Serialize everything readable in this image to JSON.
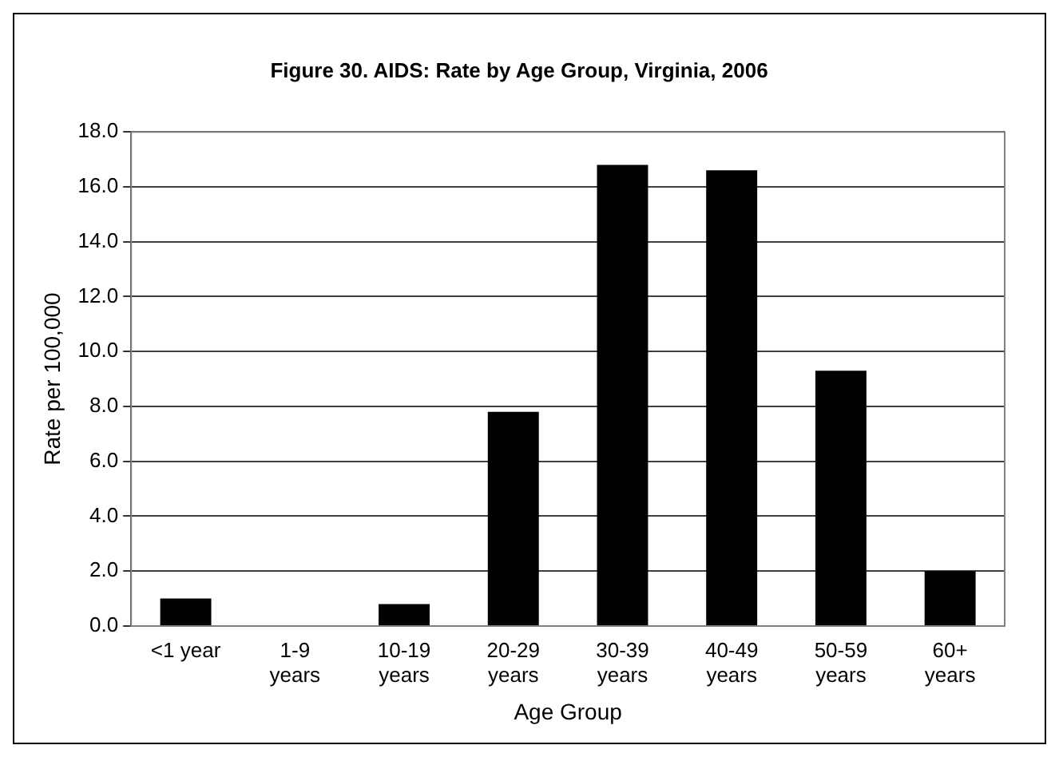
{
  "chart_data": {
    "type": "bar",
    "title": "Figure 30. AIDS: Rate by Age Group, Virginia, 2006",
    "xlabel": "Age Group",
    "ylabel": "Rate per 100,000",
    "categories": [
      "<1 year",
      "1-9 years",
      "10-19 years",
      "20-29 years",
      "30-39 years",
      "40-49 years",
      "50-59 years",
      "60+ years"
    ],
    "values": [
      1.0,
      0.0,
      0.8,
      7.8,
      16.8,
      16.6,
      9.3,
      2.0
    ],
    "color": "#000000",
    "ylim": [
      0,
      18
    ],
    "yticks": [
      {
        "value": 0,
        "label": "0.0"
      },
      {
        "value": 2,
        "label": "2.0"
      },
      {
        "value": 4,
        "label": "4.0"
      },
      {
        "value": 6,
        "label": "6.0"
      },
      {
        "value": 8,
        "label": "8.0"
      },
      {
        "value": 10,
        "label": "10.0"
      },
      {
        "value": 12,
        "label": "12.0"
      },
      {
        "value": 14,
        "label": "14.0"
      },
      {
        "value": 16,
        "label": "16.0"
      },
      {
        "value": 18,
        "label": "18.0"
      }
    ],
    "grid": "y"
  }
}
